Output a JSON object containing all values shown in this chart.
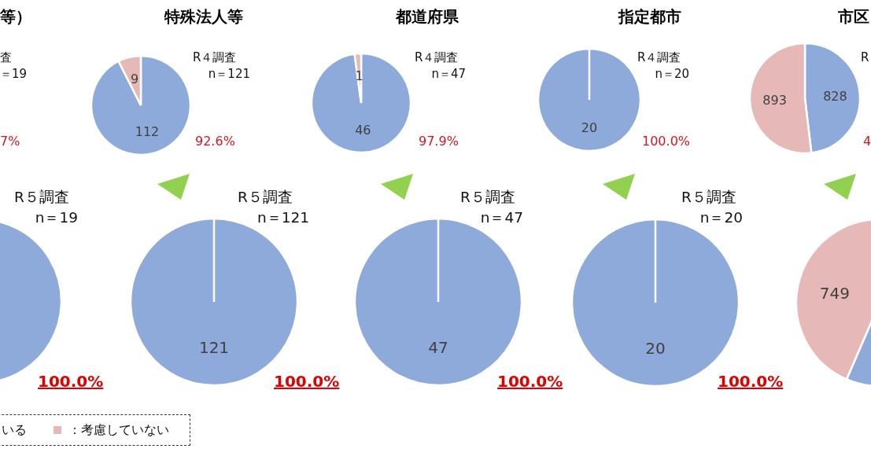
{
  "chart_data": [
    {
      "type": "other",
      "title": "等）",
      "annotations": [
        "査",
        "＝19",
        "7%"
      ]
    },
    {
      "type": "pie",
      "title": "特殊法人等",
      "values": [
        112,
        9
      ],
      "colors": [
        "#8eaadb",
        "#e6b9b8"
      ],
      "data_labels": true,
      "annotations": [
        "R４調査",
        "n＝121",
        "92.6%"
      ]
    },
    {
      "type": "pie",
      "title": "都道府県",
      "values": [
        46,
        1
      ],
      "colors": [
        "#8eaadb",
        "#e6b9b8"
      ],
      "data_labels": true,
      "annotations": [
        "R４調査",
        "n＝47",
        "97.9%"
      ]
    },
    {
      "type": "pie",
      "title": "指定都市",
      "values": [
        20,
        0
      ],
      "colors": [
        "#8eaadb",
        "#e6b9b8"
      ],
      "value_labels": [
        "20",
        null
      ],
      "annotations": [
        "R４調査",
        "n＝20",
        "100.0%"
      ]
    },
    {
      "type": "pie",
      "title": "市区",
      "values": [
        828,
        893
      ],
      "colors": [
        "#8eaadb",
        "#e6b9b8"
      ],
      "data_labels": true,
      "annotations": [
        "R",
        "4"
      ]
    },
    {
      "type": "pie",
      "categories": [
        "いる",
        "：考慮していない"
      ],
      "values": [
        100,
        0
      ],
      "colors": [
        "#8eaadb",
        "#e6b9b8"
      ],
      "legend": "bottom right",
      "annotations": [
        "R５調査",
        "n＝19",
        "100.0%"
      ]
    },
    {
      "type": "pie",
      "values": [
        121,
        0
      ],
      "colors": [
        "#8eaadb",
        "#e6b9b8"
      ],
      "value_labels": [
        "121",
        null
      ],
      "annotations": [
        "R５調査",
        "n＝121",
        "100.0%"
      ]
    },
    {
      "type": "pie",
      "values": [
        47,
        0
      ],
      "colors": [
        "#8eaadb",
        "#e6b9b8"
      ],
      "value_labels": [
        "47",
        null
      ],
      "annotations": [
        "R５調査",
        "n＝47",
        "100.0%"
      ]
    },
    {
      "type": "pie",
      "values": [
        20,
        0
      ],
      "colors": [
        "#8eaadb",
        "#e6b9b8"
      ],
      "value_labels": [
        "20",
        null
      ],
      "annotations": [
        "R５調査",
        "n＝20",
        "100.0%"
      ]
    },
    {
      "type": "pie",
      "values": [
        972,
        749
      ],
      "colors": [
        "#8eaadb",
        "#e6b9b8"
      ],
      "value_labels": [
        null,
        "749"
      ]
    }
  ]
}
